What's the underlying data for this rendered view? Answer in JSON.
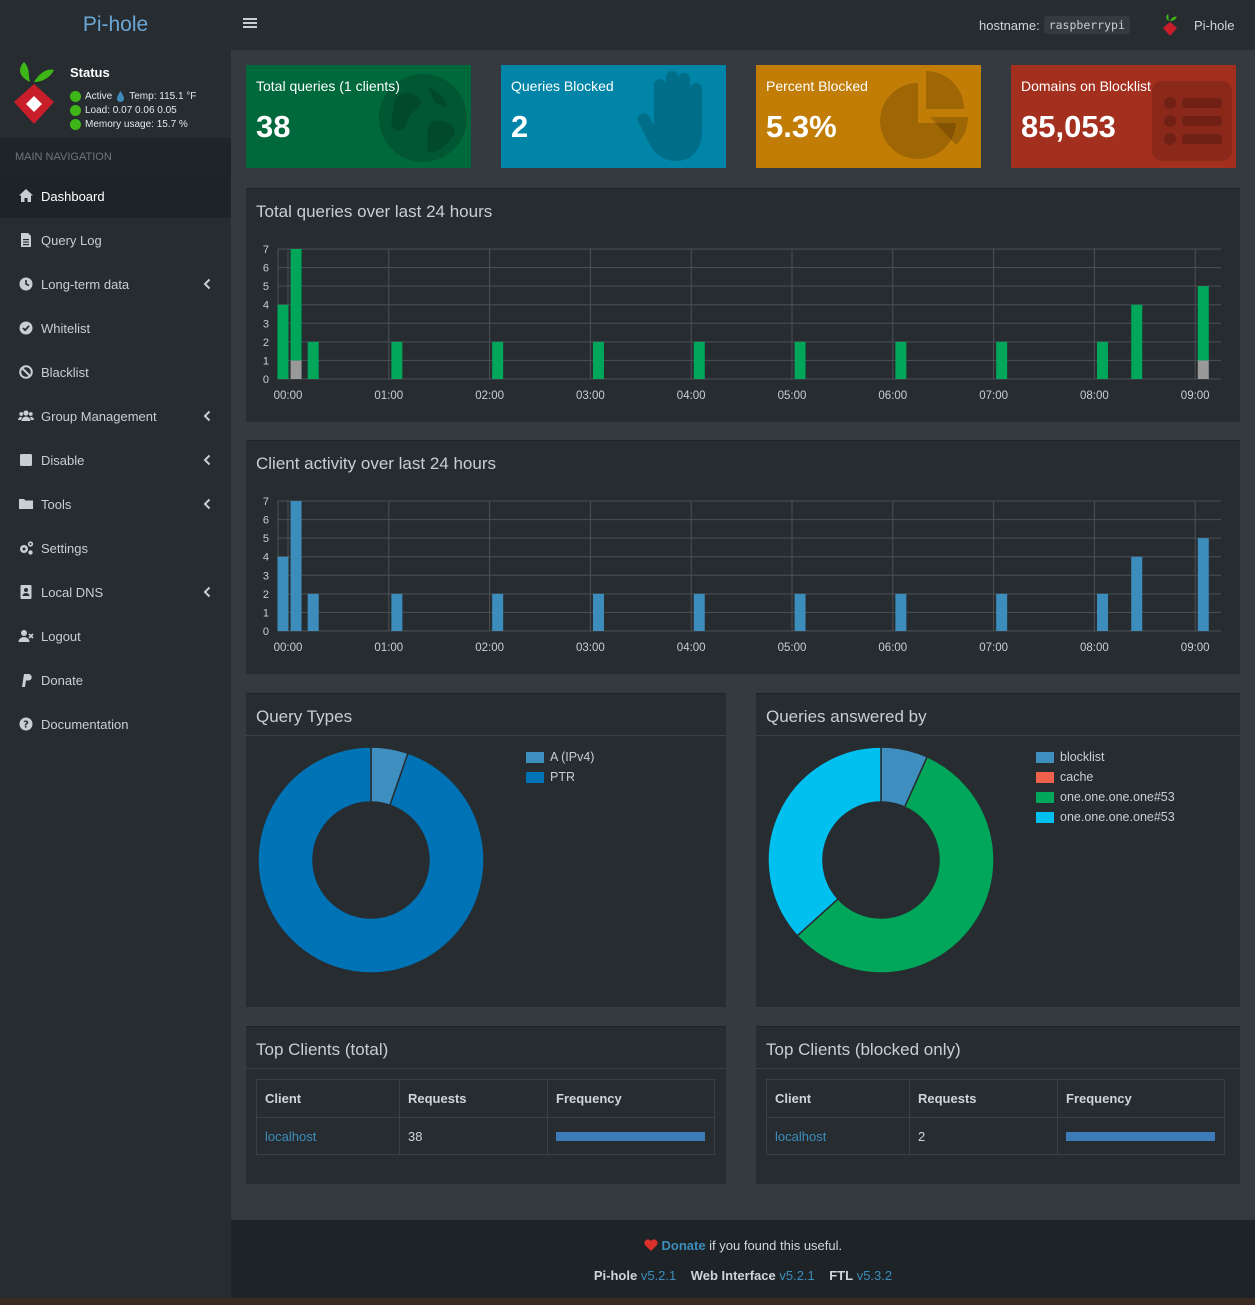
{
  "header": {
    "logo": "Pi-hole",
    "hostname_label": "hostname:",
    "hostname_value": "raspberrypi",
    "user_label": "Pi-hole"
  },
  "sidebar": {
    "status": {
      "title": "Status",
      "active": "Active",
      "temp": "Temp: 115.1 °F",
      "load": "Load:  0.07  0.06  0.05",
      "memory": "Memory usage:  15.7 %"
    },
    "section": "MAIN NAVIGATION",
    "items": [
      {
        "label": "Dashboard",
        "icon": "home-icon",
        "caret": false,
        "active": true
      },
      {
        "label": "Query Log",
        "icon": "file-icon",
        "caret": false
      },
      {
        "label": "Long-term data",
        "icon": "clock-icon",
        "caret": true
      },
      {
        "label": "Whitelist",
        "icon": "check-circle-icon",
        "caret": false
      },
      {
        "label": "Blacklist",
        "icon": "ban-icon",
        "caret": false
      },
      {
        "label": "Group Management",
        "icon": "users-icon",
        "caret": true
      },
      {
        "label": "Disable",
        "icon": "stop-icon",
        "caret": true
      },
      {
        "label": "Tools",
        "icon": "folder-icon",
        "caret": true
      },
      {
        "label": "Settings",
        "icon": "gears-icon",
        "caret": false
      },
      {
        "label": "Local DNS",
        "icon": "address-book-icon",
        "caret": true
      },
      {
        "label": "Logout",
        "icon": "user-times-icon",
        "caret": false
      },
      {
        "label": "Donate",
        "icon": "paypal-icon",
        "caret": false
      },
      {
        "label": "Documentation",
        "icon": "question-circle-icon",
        "caret": false
      }
    ]
  },
  "stats": [
    {
      "label": "Total queries (1 clients)",
      "value": "38",
      "color": "#00693b",
      "icon": "globe-icon"
    },
    {
      "label": "Queries Blocked",
      "value": "2",
      "color": "#0085a8",
      "icon": "hand-icon"
    },
    {
      "label": "Percent Blocked",
      "value": "5.3%",
      "color": "#c17d06",
      "icon": "pie-chart-icon"
    },
    {
      "label": "Domains on Blocklist",
      "value": "85,053",
      "color": "#a3301f",
      "icon": "list-icon"
    }
  ],
  "queries_chart": {
    "title": "Total queries over last 24 hours"
  },
  "clients_chart": {
    "title": "Client activity over last 24 hours"
  },
  "query_types": {
    "title": "Query Types",
    "legend": [
      {
        "label": "A (IPv4)",
        "color": "#3e8ec0"
      },
      {
        "label": "PTR",
        "color": "#0073b7"
      }
    ]
  },
  "answered_by": {
    "title": "Queries answered by",
    "legend": [
      {
        "label": "blocklist",
        "color": "#3e8ec0"
      },
      {
        "label": "cache",
        "color": "#f0614d"
      },
      {
        "label": "one.one.one.one#53",
        "color": "#00a65a"
      },
      {
        "label": "one.one.one.one#53",
        "color": "#00c0ef"
      }
    ]
  },
  "top_clients": {
    "title": "Top Clients (total)",
    "headers": [
      "Client",
      "Requests",
      "Frequency"
    ],
    "rows": [
      {
        "client": "localhost",
        "requests": "38",
        "frequency": 1.0
      }
    ]
  },
  "top_blocked": {
    "title": "Top Clients (blocked only)",
    "headers": [
      "Client",
      "Requests",
      "Frequency"
    ],
    "rows": [
      {
        "client": "localhost",
        "requests": "2",
        "frequency": 1.0
      }
    ]
  },
  "footer": {
    "donate": "Donate",
    "donate_suffix": " if you found this useful.",
    "pihole_label": "Pi-hole",
    "pihole_version": "v5.2.1",
    "web_label": "Web Interface",
    "web_version": "v5.2.1",
    "ftl_label": "FTL",
    "ftl_version": "v5.3.2"
  },
  "chart_data": [
    {
      "type": "bar",
      "title": "Total queries over last 24 hours",
      "ylim": [
        0,
        7
      ],
      "yticks": [
        0,
        1,
        2,
        3,
        4,
        5,
        6,
        7
      ],
      "xticks": [
        "00:00",
        "01:00",
        "02:00",
        "03:00",
        "04:00",
        "05:00",
        "06:00",
        "07:00",
        "08:00",
        "09:00"
      ],
      "grid": true,
      "stacked": true,
      "bars": [
        {
          "t": -0.05,
          "permitted": 4,
          "blocked": 0
        },
        {
          "t": 0.08,
          "permitted": 6,
          "blocked": 1
        },
        {
          "t": 0.25,
          "permitted": 2,
          "blocked": 0
        },
        {
          "t": 1.08,
          "permitted": 2,
          "blocked": 0
        },
        {
          "t": 2.08,
          "permitted": 2,
          "blocked": 0
        },
        {
          "t": 3.08,
          "permitted": 2,
          "blocked": 0
        },
        {
          "t": 4.08,
          "permitted": 2,
          "blocked": 0
        },
        {
          "t": 5.08,
          "permitted": 2,
          "blocked": 0
        },
        {
          "t": 6.08,
          "permitted": 2,
          "blocked": 0
        },
        {
          "t": 7.08,
          "permitted": 2,
          "blocked": 0
        },
        {
          "t": 8.08,
          "permitted": 2,
          "blocked": 0
        },
        {
          "t": 8.42,
          "permitted": 4,
          "blocked": 0
        },
        {
          "t": 9.08,
          "permitted": 4,
          "blocked": 1
        }
      ],
      "series_colors": {
        "permitted": "#00a65a",
        "blocked": "#999999"
      }
    },
    {
      "type": "bar",
      "title": "Client activity over last 24 hours",
      "ylim": [
        0,
        7
      ],
      "yticks": [
        0,
        1,
        2,
        3,
        4,
        5,
        6,
        7
      ],
      "xticks": [
        "00:00",
        "01:00",
        "02:00",
        "03:00",
        "04:00",
        "05:00",
        "06:00",
        "07:00",
        "08:00",
        "09:00"
      ],
      "grid": true,
      "bars": [
        {
          "t": -0.05,
          "value": 4
        },
        {
          "t": 0.08,
          "value": 7
        },
        {
          "t": 0.25,
          "value": 2
        },
        {
          "t": 1.08,
          "value": 2
        },
        {
          "t": 2.08,
          "value": 2
        },
        {
          "t": 3.08,
          "value": 2
        },
        {
          "t": 4.08,
          "value": 2
        },
        {
          "t": 5.08,
          "value": 2
        },
        {
          "t": 6.08,
          "value": 2
        },
        {
          "t": 7.08,
          "value": 2
        },
        {
          "t": 8.08,
          "value": 2
        },
        {
          "t": 8.42,
          "value": 4
        },
        {
          "t": 9.08,
          "value": 5
        }
      ],
      "series_colors": {
        "value": "#3c8dbc"
      }
    },
    {
      "type": "pie",
      "title": "Query Types",
      "donut": true,
      "slices": [
        {
          "label": "A (IPv4)",
          "value": 5.3,
          "color": "#3e8ec0"
        },
        {
          "label": "PTR",
          "value": 94.7,
          "color": "#0073b7"
        }
      ]
    },
    {
      "type": "pie",
      "title": "Queries answered by",
      "donut": true,
      "slices": [
        {
          "label": "blocklist",
          "value": 6.7,
          "color": "#3e8ec0"
        },
        {
          "label": "cache",
          "value": 0,
          "color": "#f0614d"
        },
        {
          "label": "one.one.one.one#53",
          "value": 56.6,
          "color": "#00a65a"
        },
        {
          "label": "one.one.one.one#53",
          "value": 36.7,
          "color": "#00c0ef"
        }
      ]
    }
  ]
}
